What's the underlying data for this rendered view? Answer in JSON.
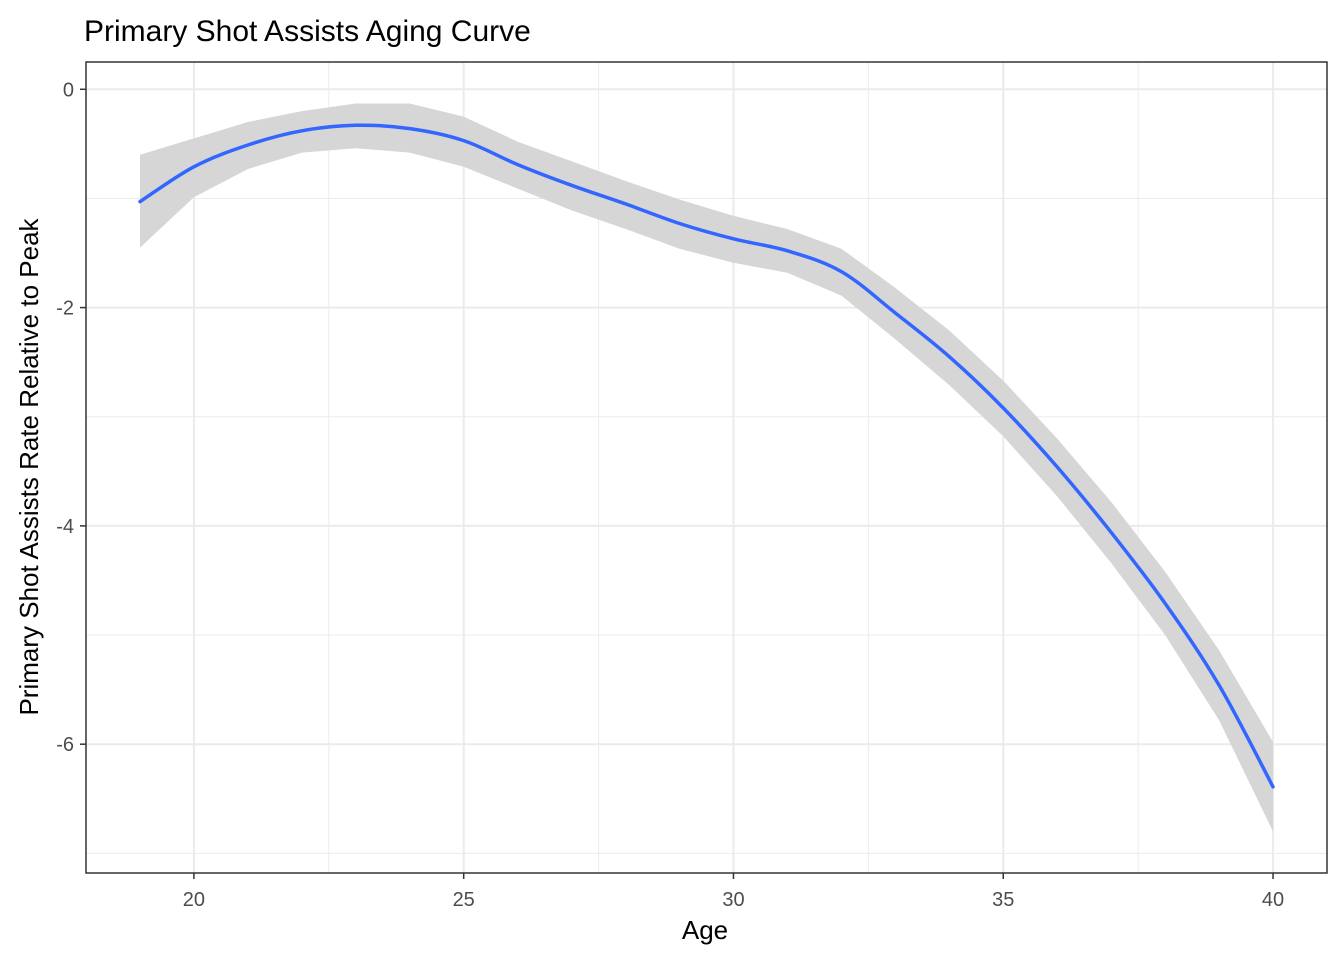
{
  "chart_data": {
    "type": "line",
    "title": "Primary Shot Assists Aging Curve",
    "xlabel": "Age",
    "ylabel": "Primary Shot Assists Rate Relative to Peak",
    "xlim": [
      18,
      41
    ],
    "ylim": [
      -7.18,
      0.25
    ],
    "x_ticks": [
      20,
      25,
      30,
      35,
      40
    ],
    "y_ticks": [
      0,
      -2,
      -4,
      -6
    ],
    "x_minor": [
      22.5,
      27.5,
      32.5,
      37.5
    ],
    "y_minor": [
      -1,
      -3,
      -5,
      -7
    ],
    "grid": true,
    "legend": "none",
    "colors": {
      "line": "#3366ff",
      "band": "#d6d6d6",
      "grid": "#ebebeb",
      "border": "#333333",
      "text": "#000000",
      "tick_text": "#4d4d4d"
    },
    "series": [
      {
        "x": [
          19,
          20,
          21,
          22,
          23,
          24,
          25,
          26,
          27,
          28,
          29,
          30,
          31,
          32,
          33,
          34,
          35,
          36,
          37,
          38,
          39,
          40
        ],
        "y": [
          -1.03,
          -0.71,
          -0.51,
          -0.38,
          -0.33,
          -0.36,
          -0.47,
          -0.69,
          -0.88,
          -1.05,
          -1.23,
          -1.37,
          -1.48,
          -1.67,
          -2.05,
          -2.45,
          -2.92,
          -3.46,
          -4.06,
          -4.71,
          -5.46,
          -6.39
        ],
        "lower": [
          -1.45,
          -0.99,
          -0.73,
          -0.58,
          -0.54,
          -0.58,
          -0.71,
          -0.91,
          -1.11,
          -1.28,
          -1.46,
          -1.59,
          -1.68,
          -1.89,
          -2.29,
          -2.71,
          -3.18,
          -3.73,
          -4.34,
          -5.0,
          -5.78,
          -6.8
        ],
        "upper": [
          -0.6,
          -0.45,
          -0.3,
          -0.2,
          -0.13,
          -0.13,
          -0.25,
          -0.48,
          -0.66,
          -0.84,
          -1.01,
          -1.16,
          -1.28,
          -1.46,
          -1.82,
          -2.21,
          -2.67,
          -3.2,
          -3.78,
          -4.42,
          -5.14,
          -5.98
        ]
      }
    ]
  }
}
